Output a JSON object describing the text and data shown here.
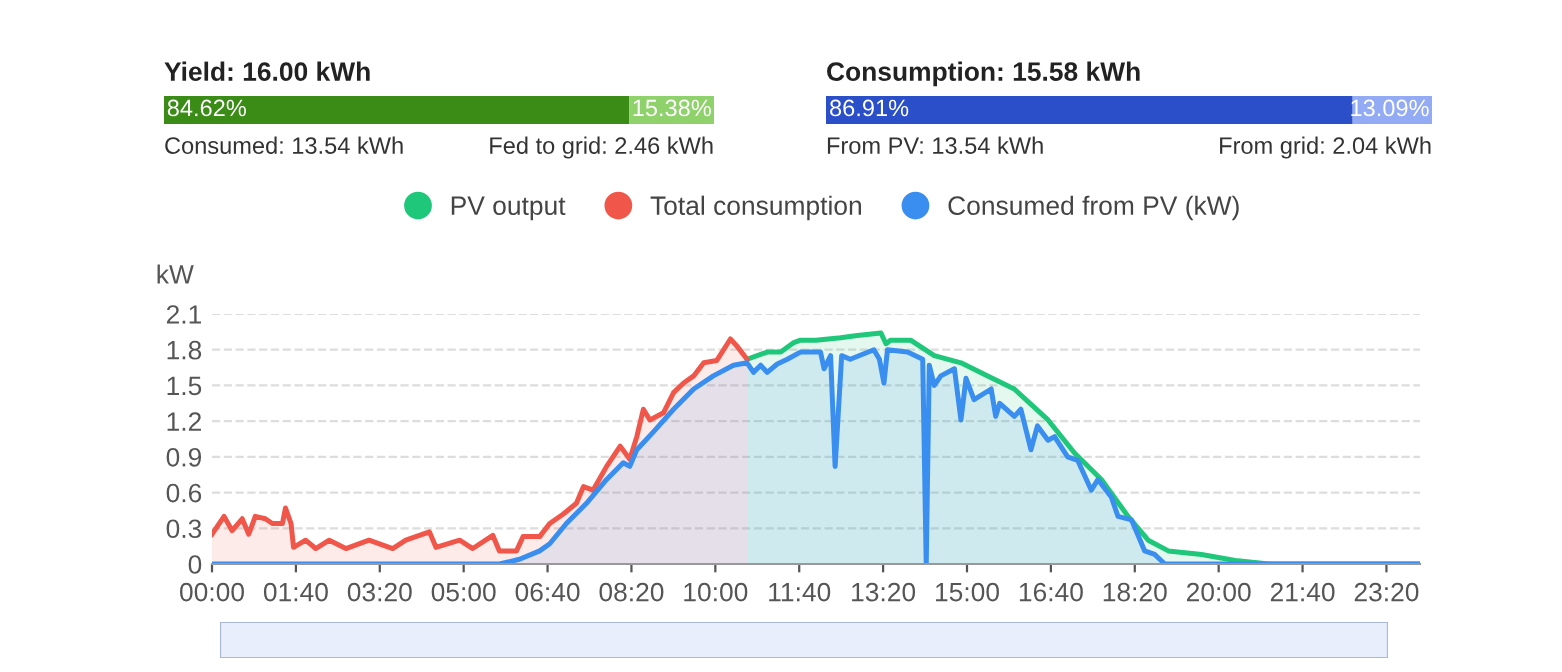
{
  "chart_data": [
    {
      "type": "bar",
      "orientation": "horizontal",
      "stacked": true,
      "tick_labels": false,
      "title": "Yield: 16.00 kWh",
      "categories": [
        null
      ],
      "series": [
        {
          "color": "#3a8c16",
          "values": [
            84.62
          ],
          "value_labels": [
            "84.62%"
          ]
        },
        {
          "color": "#8fd16b",
          "values": [
            15.38
          ],
          "value_labels": [
            "15.38%"
          ]
        }
      ],
      "annotations": [
        "Consumed: 13.54 kWh",
        "Fed to grid: 2.46 kWh"
      ]
    },
    {
      "type": "bar",
      "orientation": "horizontal",
      "stacked": true,
      "tick_labels": false,
      "title": "Consumption: 15.58 kWh",
      "categories": [
        null
      ],
      "series": [
        {
          "color": "#2a4fc8",
          "values": [
            86.91
          ],
          "value_labels": [
            "86.91%"
          ]
        },
        {
          "color": "#93aaf5",
          "values": [
            13.09
          ],
          "value_labels": [
            "13.09%"
          ]
        }
      ],
      "annotations": [
        "From PV: 13.54 kWh",
        "From grid: 2.04 kWh"
      ]
    },
    {
      "type": "area",
      "ylabel": "kW",
      "legend": "top",
      "grid": "y",
      "line_style": "solid",
      "xlim": [
        0,
        24
      ],
      "ylim": [
        0,
        2.1
      ],
      "xticks": [
        {
          "value": 0,
          "label": "00:00"
        },
        {
          "value": 1.6667,
          "label": "01:40"
        },
        {
          "value": 3.3333,
          "label": "03:20"
        },
        {
          "value": 5,
          "label": "05:00"
        },
        {
          "value": 6.6667,
          "label": "06:40"
        },
        {
          "value": 8.3333,
          "label": "08:20"
        },
        {
          "value": 10,
          "label": "10:00"
        },
        {
          "value": 11.6667,
          "label": "11:40"
        },
        {
          "value": 13.3333,
          "label": "13:20"
        },
        {
          "value": 15,
          "label": "15:00"
        },
        {
          "value": 16.6667,
          "label": "16:40"
        },
        {
          "value": 18.3333,
          "label": "18:20"
        },
        {
          "value": 20,
          "label": "20:00"
        },
        {
          "value": 21.6667,
          "label": "21:40"
        },
        {
          "value": 23.3333,
          "label": "23:20"
        }
      ],
      "yticks": [
        0,
        0.3,
        0.6,
        0.9,
        1.2,
        1.5,
        1.8,
        2.1
      ],
      "series": [
        {
          "name": "PV output",
          "color": "#1fc77a",
          "x": [
            10.63,
            11.03,
            11.3,
            11.56,
            11.69,
            12.0,
            12.49,
            12.82,
            13.29,
            13.39,
            13.48,
            13.88,
            14.35,
            14.88,
            15.41,
            15.94,
            16.61,
            17.14,
            17.67,
            18.2,
            18.6,
            19.0,
            19.66,
            20.33,
            21.0,
            24.0
          ],
          "values": [
            1.72,
            1.78,
            1.78,
            1.86,
            1.88,
            1.88,
            1.9,
            1.92,
            1.94,
            1.85,
            1.88,
            1.88,
            1.75,
            1.69,
            1.58,
            1.47,
            1.21,
            0.93,
            0.71,
            0.4,
            0.2,
            0.11,
            0.08,
            0.03,
            0,
            0
          ]
        },
        {
          "name": "Total consumption",
          "color": "#f0574a",
          "x": [
            0,
            0.24,
            0.4,
            0.6,
            0.73,
            0.86,
            1.06,
            1.2,
            1.4,
            1.46,
            1.57,
            1.62,
            1.86,
            2.06,
            2.33,
            2.66,
            3.12,
            3.59,
            3.85,
            4.32,
            4.45,
            4.92,
            5.18,
            5.58,
            5.71,
            6.05,
            6.18,
            6.51,
            6.71,
            6.98,
            7.24,
            7.38,
            7.57,
            7.84,
            8.11,
            8.3,
            8.44,
            8.57,
            8.7,
            8.97,
            9.17,
            9.37,
            9.57,
            9.77,
            10.03,
            10.3,
            10.43,
            10.63
          ],
          "values": [
            0.25,
            0.4,
            0.28,
            0.38,
            0.25,
            0.4,
            0.38,
            0.34,
            0.34,
            0.47,
            0.34,
            0.14,
            0.2,
            0.13,
            0.2,
            0.13,
            0.2,
            0.13,
            0.2,
            0.27,
            0.14,
            0.2,
            0.13,
            0.24,
            0.11,
            0.11,
            0.23,
            0.23,
            0.34,
            0.42,
            0.51,
            0.65,
            0.62,
            0.82,
            0.99,
            0.88,
            1.07,
            1.3,
            1.21,
            1.27,
            1.44,
            1.52,
            1.58,
            1.69,
            1.71,
            1.89,
            1.83,
            1.72
          ]
        },
        {
          "name": "Consumed from PV (kW)",
          "color": "#3a8ef0",
          "x": [
            0,
            5.71,
            6.11,
            6.51,
            6.71,
            7.04,
            7.44,
            7.84,
            8.17,
            8.3,
            8.44,
            8.77,
            9.17,
            9.57,
            9.96,
            10.36,
            10.63,
            10.76,
            10.9,
            11.03,
            11.23,
            11.43,
            11.69,
            12.09,
            12.16,
            12.29,
            12.38,
            12.51,
            12.68,
            13.15,
            13.26,
            13.35,
            13.42,
            13.82,
            14.12,
            14.19,
            14.25,
            14.35,
            14.48,
            14.75,
            14.88,
            14.98,
            15.14,
            15.48,
            15.57,
            15.65,
            15.94,
            16.07,
            16.27,
            16.4,
            16.61,
            16.74,
            17.0,
            17.2,
            17.47,
            17.6,
            17.87,
            18.0,
            18.27,
            18.53,
            18.73,
            18.93,
            24.0
          ],
          "values": [
            0,
            0,
            0.04,
            0.11,
            0.17,
            0.34,
            0.51,
            0.71,
            0.85,
            0.82,
            0.96,
            1.11,
            1.3,
            1.47,
            1.58,
            1.67,
            1.69,
            1.61,
            1.67,
            1.61,
            1.68,
            1.72,
            1.78,
            1.78,
            1.64,
            1.75,
            0.82,
            1.75,
            1.72,
            1.8,
            1.72,
            1.52,
            1.8,
            1.78,
            1.72,
            0,
            1.67,
            1.5,
            1.58,
            1.64,
            1.21,
            1.56,
            1.38,
            1.47,
            1.24,
            1.35,
            1.24,
            1.3,
            0.96,
            1.16,
            1.04,
            1.07,
            0.9,
            0.87,
            0.62,
            0.71,
            0.56,
            0.4,
            0.37,
            0.11,
            0.08,
            0,
            0
          ]
        }
      ]
    }
  ]
}
